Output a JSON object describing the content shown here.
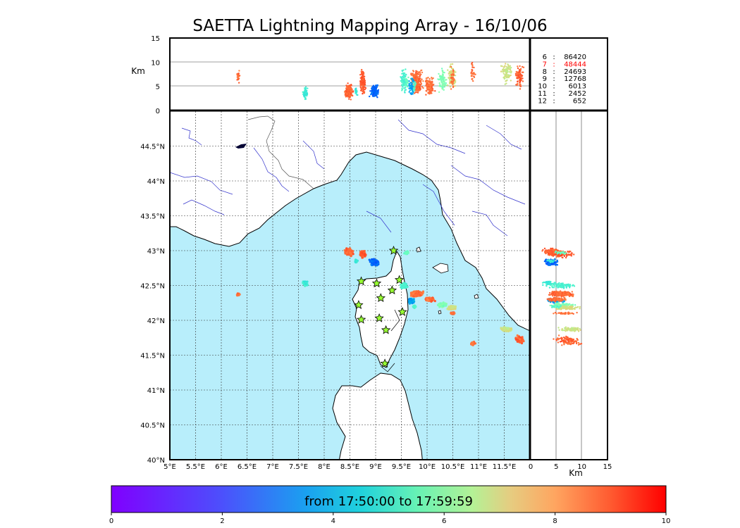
{
  "chart_data": {
    "type": "scatter",
    "title": "SAETTA Lightning Mapping Array - 16/10/06",
    "map": {
      "xticks": [
        "5°E",
        "5.5°E",
        "6°E",
        "6.5°E",
        "7°E",
        "7.5°E",
        "8°E",
        "8.5°E",
        "9°E",
        "9.5°E",
        "10°E",
        "10.5°E",
        "11°E",
        "11.5°E"
      ],
      "xtick_values": [
        5,
        5.5,
        6,
        6.5,
        7,
        7.5,
        8,
        8.5,
        9,
        9.5,
        10,
        10.5,
        11,
        11.5
      ],
      "yticks": [
        "40°N",
        "40.5°N",
        "41°N",
        "41.5°N",
        "42°N",
        "42.5°N",
        "43°N",
        "43.5°N",
        "44°N",
        "44.5°N"
      ],
      "ytick_values": [
        40,
        40.5,
        41,
        41.5,
        42,
        42.5,
        43,
        43.5,
        44,
        44.5
      ],
      "xlim": [
        5,
        12
      ],
      "ylim": [
        40,
        45
      ],
      "grid": true,
      "colors": {
        "sea": "#b8eefb",
        "land": "#ffffff",
        "coast": "#000000",
        "rivers": "#3333cc",
        "borders": "#555555"
      }
    },
    "altitude_panel": {
      "ylabel": "Km",
      "yticks": [
        "0",
        "5",
        "10",
        "15"
      ],
      "ytick_values": [
        0,
        5,
        10,
        15
      ],
      "ylim": [
        0,
        15
      ]
    },
    "side_panel": {
      "xlabel": "Km",
      "xticks": [
        "0",
        "5",
        "10",
        "15"
      ],
      "xtick_values": [
        0,
        5,
        10,
        15
      ],
      "xlim": [
        0,
        15
      ]
    },
    "counts": [
      {
        "stations": "6",
        "sep": ":",
        "count": "86420",
        "color": "#000000"
      },
      {
        "stations": "7",
        "sep": ":",
        "count": "48444",
        "color": "#ff0000"
      },
      {
        "stations": "8",
        "sep": ":",
        "count": "24693",
        "color": "#000000"
      },
      {
        "stations": "9",
        "sep": ":",
        "count": "12768",
        "color": "#000000"
      },
      {
        "stations": "10",
        "sep": ":",
        "count": "6013",
        "color": "#000000"
      },
      {
        "stations": "11",
        "sep": ":",
        "count": "2452",
        "color": "#000000"
      },
      {
        "stations": "12",
        "sep": ":",
        "count": "652",
        "color": "#000000"
      }
    ],
    "colorbar": {
      "label": "from 17:50:00 to 17:59:59",
      "ticks": [
        "0",
        "2",
        "4",
        "6",
        "8",
        "10"
      ],
      "tick_values": [
        0,
        2,
        4,
        6,
        8,
        10
      ],
      "range": [
        0,
        10
      ],
      "colormap": "rainbow"
    },
    "stations": [
      {
        "lon": 9.35,
        "lat": 43.0
      },
      {
        "lon": 8.72,
        "lat": 42.56
      },
      {
        "lon": 9.02,
        "lat": 42.53
      },
      {
        "lon": 9.46,
        "lat": 42.58
      },
      {
        "lon": 9.32,
        "lat": 42.43
      },
      {
        "lon": 9.1,
        "lat": 42.32
      },
      {
        "lon": 8.67,
        "lat": 42.22
      },
      {
        "lon": 9.52,
        "lat": 42.12
      },
      {
        "lon": 8.72,
        "lat": 42.01
      },
      {
        "lon": 9.07,
        "lat": 42.03
      },
      {
        "lon": 9.2,
        "lat": 41.86
      },
      {
        "lon": 9.18,
        "lat": 41.38
      }
    ],
    "clusters": [
      {
        "lon": 6.33,
        "lat": 42.37,
        "dlon": 0.06,
        "dlat": 0.02,
        "t": 8.6,
        "zc": 7,
        "zs": 2,
        "n": 25
      },
      {
        "lon": 7.63,
        "lat": 42.53,
        "dlon": 0.06,
        "dlat": 0.04,
        "t": 3.8,
        "zc": 3.5,
        "zs": 1.5,
        "n": 60
      },
      {
        "lon": 8.48,
        "lat": 42.98,
        "dlon": 0.1,
        "dlat": 0.07,
        "t": 8.7,
        "zc": 4,
        "zs": 2,
        "n": 160
      },
      {
        "lon": 8.75,
        "lat": 42.95,
        "dlon": 0.07,
        "dlat": 0.06,
        "t": 8.9,
        "zc": 6,
        "zs": 3,
        "n": 120
      },
      {
        "lon": 8.98,
        "lat": 42.83,
        "dlon": 0.12,
        "dlat": 0.06,
        "t": 1.3,
        "zc": 4,
        "zs": 1.5,
        "n": 130
      },
      {
        "lon": 8.62,
        "lat": 42.85,
        "dlon": 0.05,
        "dlat": 0.03,
        "t": 3.6,
        "zc": 4,
        "zs": 1,
        "n": 25
      },
      {
        "lon": 9.55,
        "lat": 42.5,
        "dlon": 0.08,
        "dlat": 0.05,
        "t": 4.0,
        "zc": 6,
        "zs": 3,
        "n": 90
      },
      {
        "lon": 9.8,
        "lat": 42.38,
        "dlon": 0.15,
        "dlat": 0.05,
        "t": 8.6,
        "zc": 6,
        "zs": 3,
        "n": 220
      },
      {
        "lon": 9.7,
        "lat": 42.28,
        "dlon": 0.08,
        "dlat": 0.05,
        "t": 2.2,
        "zc": 5,
        "zs": 2.5,
        "n": 60
      },
      {
        "lon": 10.05,
        "lat": 42.3,
        "dlon": 0.12,
        "dlat": 0.04,
        "t": 8.6,
        "zc": 5,
        "zs": 2.5,
        "n": 120
      },
      {
        "lon": 10.3,
        "lat": 42.22,
        "dlon": 0.1,
        "dlat": 0.04,
        "t": 5.0,
        "zc": 6,
        "zs": 3,
        "n": 80
      },
      {
        "lon": 10.48,
        "lat": 42.18,
        "dlon": 0.1,
        "dlat": 0.04,
        "t": 6.6,
        "zc": 7,
        "zs": 3,
        "n": 90
      },
      {
        "lon": 10.5,
        "lat": 42.1,
        "dlon": 0.06,
        "dlat": 0.02,
        "t": 8.5,
        "zc": 7,
        "zs": 3,
        "n": 40
      },
      {
        "lon": 9.6,
        "lat": 42.97,
        "dlon": 0.05,
        "dlat": 0.03,
        "t": 4.4,
        "zc": 6,
        "zs": 2,
        "n": 25
      },
      {
        "lon": 11.55,
        "lat": 41.87,
        "dlon": 0.15,
        "dlat": 0.04,
        "t": 6.5,
        "zc": 8,
        "zs": 3,
        "n": 90
      },
      {
        "lon": 11.8,
        "lat": 41.72,
        "dlon": 0.1,
        "dlat": 0.08,
        "t": 8.8,
        "zc": 7,
        "zs": 3,
        "n": 80
      },
      {
        "lon": 10.9,
        "lat": 41.67,
        "dlon": 0.06,
        "dlat": 0.03,
        "t": 8.6,
        "zc": 8,
        "zs": 3,
        "n": 30
      },
      {
        "lon": 9.75,
        "lat": 42.2,
        "dlon": 0.04,
        "dlat": 0.03,
        "t": 4.1,
        "zc": 5,
        "zs": 2,
        "n": 20
      }
    ]
  }
}
